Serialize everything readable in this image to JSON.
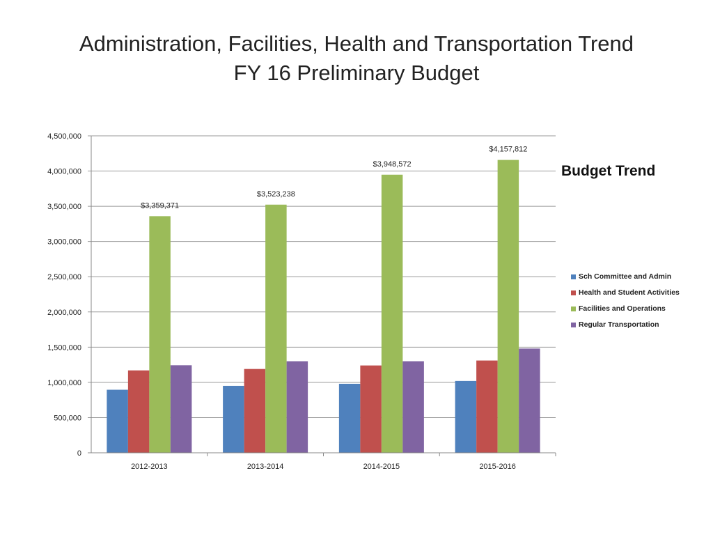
{
  "title_line1": "Administration, Facilities, Health and Transportation Trend",
  "title_line2": "FY 16 Preliminary  Budget",
  "chart_data": {
    "type": "bar",
    "title": "Budget Trend",
    "categories": [
      "2012-2013",
      "2013-2014",
      "2014-2015",
      "2015-2016"
    ],
    "ylim": [
      0,
      4500000
    ],
    "yticks": [
      0,
      500000,
      1000000,
      1500000,
      2000000,
      2500000,
      3000000,
      3500000,
      4000000,
      4500000
    ],
    "ytick_labels": [
      "0",
      "500,000",
      "1,000,000",
      "1,500,000",
      "2,000,000",
      "2,500,000",
      "3,000,000",
      "3,500,000",
      "4,000,000",
      "4,500,000"
    ],
    "grid": true,
    "legend_position": "right",
    "series": [
      {
        "name": "Sch Committee and Admin",
        "color": "#4f81bd",
        "values": [
          895000,
          950000,
          980000,
          1020000
        ]
      },
      {
        "name": "Health and Student Activities",
        "color": "#c0504d",
        "values": [
          1170000,
          1190000,
          1240000,
          1310000
        ]
      },
      {
        "name": "Facilities and Operations",
        "color": "#9bbb59",
        "values": [
          3359371,
          3523238,
          3948572,
          4157812
        ],
        "data_labels": [
          "$3,359,371",
          "$3,523,238",
          "$3,948,572",
          "$4,157,812"
        ]
      },
      {
        "name": "Regular Transportation",
        "color": "#8064a2",
        "values": [
          1243000,
          1300000,
          1300000,
          1480000
        ]
      }
    ]
  }
}
